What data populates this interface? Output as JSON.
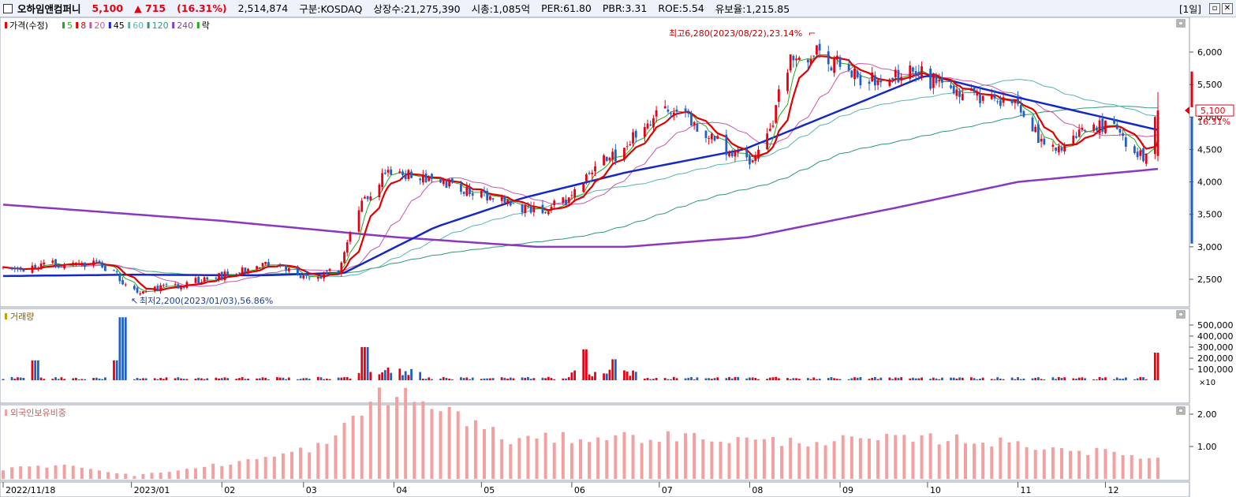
{
  "header": {
    "name": "오하임앤컴퍼니",
    "price": "5,100",
    "change": "▲ 715",
    "change_pct": "(16.31%)",
    "volume": "2,514,874",
    "market": "구분:KOSDAQ",
    "shares": "상장수:21,275,390",
    "mcap": "시총:1,085억",
    "per": "PER:61.80",
    "pbr": "PBR:3.31",
    "roe": "ROE:5.54",
    "float": "유보율:1,215.85",
    "period": "[1일]"
  },
  "legend": {
    "price": "가격(수정)",
    "ma5": "5",
    "ma8": "8",
    "ma20": "20",
    "ma45": "45",
    "ma60": "60",
    "ma120": "120",
    "ma240": "240",
    "fall": "락",
    "volume": "거래량",
    "foreign": "외국인보유비중"
  },
  "annotations": {
    "high": "최고6,280(2023/08/22),23.14%",
    "low": "최저2,200(2023/01/03),56.86%",
    "last_price": "5,100",
    "last_pct": "16.31%"
  },
  "colors": {
    "up": "#e60012",
    "down": "#1f5fc6",
    "ma5": "#22aa22",
    "ma8": "#e00000",
    "ma20": "#cc55aa",
    "ma45": "#1428c8",
    "ma60": "#5ab4b4",
    "ma120": "#2a9a78",
    "ma240": "#8a38c0",
    "foreign": "#f2a0a0"
  },
  "chart_data": [
    {
      "type": "candlestick",
      "x_axis": [
        "2022/11/18",
        "2023/01",
        "02",
        "03",
        "04",
        "05",
        "06",
        "07",
        "08",
        "09",
        "10",
        "11",
        "12"
      ],
      "y_ticks": [
        "6,000",
        "5,500",
        "5,000",
        "4,500",
        "4,000",
        "3,500",
        "3,000",
        "2,500"
      ],
      "ylim": [
        2000,
        6500
      ],
      "close_path": [
        [
          "2022/11/18",
          2650
        ],
        [
          "2022/12/10",
          2750
        ],
        [
          "2022/12/22",
          2720
        ],
        [
          "2023/01/03",
          2300
        ],
        [
          "2023/01/16",
          2400
        ],
        [
          "2023/02/06",
          2600
        ],
        [
          "2023/02/16",
          2780
        ],
        [
          "2023/03/01",
          2500
        ],
        [
          "2023/03/13",
          2650
        ],
        [
          "2023/03/21",
          3700
        ],
        [
          "2023/03/31",
          4200
        ],
        [
          "2023/04/14",
          4000
        ],
        [
          "2023/05/03",
          3800
        ],
        [
          "2023/05/19",
          3550
        ],
        [
          "2023/05/31",
          3700
        ],
        [
          "2023/06/07",
          4200
        ],
        [
          "2023/06/16",
          4400
        ],
        [
          "2023/06/26",
          4900
        ],
        [
          "2023/07/03",
          5050
        ],
        [
          "2023/07/10",
          5000
        ],
        [
          "2023/07/24",
          4500
        ],
        [
          "2023/08/03",
          4300
        ],
        [
          "2023/08/08",
          4800
        ],
        [
          "2023/08/14",
          5800
        ],
        [
          "2023/08/22",
          6000
        ],
        [
          "2023/08/31",
          5800
        ],
        [
          "2023/09/08",
          5600
        ],
        [
          "2023/09/27",
          5700
        ],
        [
          "2023/10/11",
          5300
        ],
        [
          "2023/10/30",
          5300
        ],
        [
          "2023/11/08",
          4700
        ],
        [
          "2023/11/16",
          4400
        ],
        [
          "2023/11/23",
          4900
        ],
        [
          "2023/12/04",
          4800
        ],
        [
          "2023/12/14",
          4400
        ],
        [
          "2023/12/19",
          5100
        ]
      ],
      "ma240": [
        [
          "2022/11/18",
          3650
        ],
        [
          "2023/02/01",
          3400
        ],
        [
          "2023/04/01",
          3150
        ],
        [
          "2023/05/20",
          3000
        ],
        [
          "2023/06/20",
          3000
        ],
        [
          "2023/08/01",
          3150
        ],
        [
          "2023/09/20",
          3600
        ],
        [
          "2023/11/01",
          4000
        ],
        [
          "2023/12/19",
          4200
        ]
      ],
      "ma45": [
        [
          "2022/11/18",
          2550
        ],
        [
          "2023/01/01",
          2570
        ],
        [
          "2023/02/15",
          2560
        ],
        [
          "2023/03/15",
          2600
        ],
        [
          "2023/04/15",
          3300
        ],
        [
          "2023/05/15",
          3750
        ],
        [
          "2023/06/20",
          4150
        ],
        [
          "2023/07/30",
          4500
        ],
        [
          "2023/09/01",
          5100
        ],
        [
          "2023/10/01",
          5650
        ],
        [
          "2023/11/01",
          5300
        ],
        [
          "2023/12/19",
          4800
        ]
      ]
    },
    {
      "type": "bar",
      "name": "거래량",
      "y_ticks": [
        "500,000",
        "400,000",
        "300,000",
        "200,000",
        "100,000"
      ],
      "unit": "×10",
      "peaks": [
        [
          "2022/11/29",
          180000
        ],
        [
          "2022/12/26",
          180000
        ],
        [
          "2022/12/29",
          570000
        ],
        [
          "2023/03/22",
          300000
        ],
        [
          "2023/06/05",
          280000
        ],
        [
          "2023/06/16",
          190000
        ],
        [
          "2023/12/19",
          250000
        ]
      ]
    },
    {
      "type": "bar",
      "name": "외국인보유비중",
      "y_ticks": [
        "2.00",
        "1.00"
      ],
      "profile": [
        [
          "2022/11/18",
          0.3
        ],
        [
          "2022/12/10",
          0.45
        ],
        [
          "2023/01/02",
          0.1
        ],
        [
          "2023/01/20",
          0.3
        ],
        [
          "2023/02/20",
          0.7
        ],
        [
          "2023/03/10",
          1.1
        ],
        [
          "2023/03/28",
          2.7
        ],
        [
          "2023/04/20",
          2.1
        ],
        [
          "2023/05/10",
          1.2
        ],
        [
          "2023/06/10",
          1.3
        ],
        [
          "2023/07/10",
          1.3
        ],
        [
          "2023/08/10",
          1.15
        ],
        [
          "2023/09/10",
          1.2
        ],
        [
          "2023/10/10",
          1.25
        ],
        [
          "2023/11/10",
          1.0
        ],
        [
          "2023/12/19",
          0.65
        ]
      ]
    }
  ]
}
